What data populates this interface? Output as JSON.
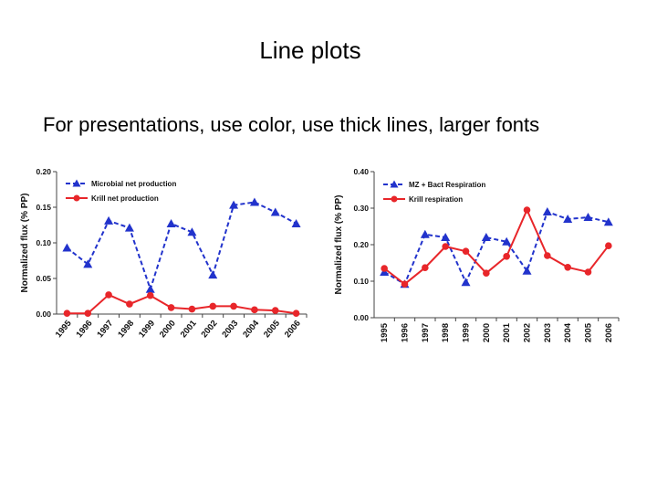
{
  "slide": {
    "title": "Line plots",
    "subtitle": "For presentations, use color, use thick lines, larger fonts"
  },
  "colors": {
    "blue": "#2233cc",
    "red": "#e8262a"
  },
  "chart_data": [
    {
      "type": "line",
      "ylabel": "Normalized flux (% PP)",
      "ylim": [
        0,
        0.2
      ],
      "yticks": [
        "0.00",
        "0.05",
        "0.10",
        "0.15",
        "0.20"
      ],
      "categories": [
        "1995",
        "1996",
        "1997",
        "1998",
        "1999",
        "2000",
        "2001",
        "2002",
        "2003",
        "2004",
        "2005",
        "2006"
      ],
      "legend_position": "top-left",
      "grid": false,
      "series": [
        {
          "name": "Microbial net production",
          "color": "#2233cc",
          "marker": "triangle",
          "dash": true,
          "values": [
            0.093,
            0.07,
            0.131,
            0.121,
            0.035,
            0.127,
            0.115,
            0.055,
            0.153,
            0.157,
            0.143,
            0.127
          ]
        },
        {
          "name": "Krill net production",
          "color": "#e8262a",
          "marker": "circle",
          "dash": false,
          "values": [
            0.001,
            0.001,
            0.027,
            0.014,
            0.026,
            0.009,
            0.007,
            0.011,
            0.011,
            0.006,
            0.005,
            0.001
          ]
        }
      ]
    },
    {
      "type": "line",
      "ylabel": "Normalized flux (% PP)",
      "ylim": [
        0,
        0.4
      ],
      "yticks": [
        "0.00",
        "0.10",
        "0.20",
        "0.30",
        "0.40"
      ],
      "categories": [
        "1995",
        "1996",
        "1997",
        "1998",
        "1999",
        "2000",
        "2001",
        "2002",
        "2003",
        "2004",
        "2005",
        "2006"
      ],
      "legend_position": "top-left",
      "grid": false,
      "series": [
        {
          "name": "MZ + Bact Respiration",
          "color": "#2233cc",
          "marker": "triangle",
          "dash": true,
          "values": [
            0.125,
            0.092,
            0.228,
            0.22,
            0.097,
            0.22,
            0.208,
            0.128,
            0.29,
            0.27,
            0.275,
            0.262
          ]
        },
        {
          "name": "Krill respiration",
          "color": "#e8262a",
          "marker": "circle",
          "dash": false,
          "values": [
            0.135,
            0.092,
            0.137,
            0.195,
            0.182,
            0.122,
            0.168,
            0.295,
            0.17,
            0.138,
            0.125,
            0.197
          ]
        }
      ]
    }
  ]
}
